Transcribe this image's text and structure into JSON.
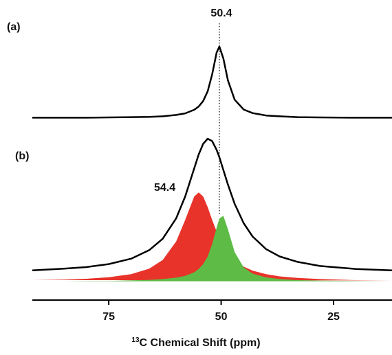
{
  "chart_data": {
    "type": "line",
    "x": [
      92,
      85,
      80,
      75,
      70,
      66,
      63,
      60,
      58,
      56,
      55,
      54,
      53,
      52,
      51,
      50.4,
      49.5,
      48.5,
      47,
      45,
      43,
      40,
      37,
      33,
      28,
      20,
      12
    ],
    "series": [
      {
        "color": "#e8332a",
        "fill": true,
        "values": [
          7.3,
          7.5,
          7.8,
          8.4,
          9.5,
          11.5,
          14.7,
          21.5,
          29.4,
          38.0,
          39.5,
          38.0,
          34.1,
          29.4,
          25.1,
          22.8,
          19.9,
          17.4,
          14.7,
          12.3,
          10.8,
          9.5,
          8.7,
          8.1,
          7.7,
          7.3,
          7.2
        ]
      },
      {
        "color": "#5dbb46",
        "fill": true,
        "values": [
          6.9,
          6.9,
          7.0,
          7.0,
          7.2,
          7.4,
          7.7,
          8.2,
          8.9,
          10.2,
          11.4,
          13.2,
          16.0,
          20.6,
          26.6,
          29.9,
          30.9,
          26.0,
          17.6,
          12.0,
          9.7,
          8.3,
          7.7,
          7.3,
          7.1,
          7.0,
          6.9
        ]
      },
      {
        "color": "#000000",
        "fill": false,
        "values": [
          10.9,
          11.5,
          12.1,
          13.2,
          15.2,
          18.3,
          22.5,
          30.0,
          38.0,
          48.3,
          53.4,
          57.3,
          59.2,
          58.3,
          55.1,
          52.4,
          47.7,
          42.4,
          35.3,
          28.2,
          23.3,
          18.7,
          16.0,
          14.0,
          12.5,
          11.4,
          10.9
        ]
      },
      {
        "color": "#000000",
        "fill": false,
        "values": [
          66.9,
          66.9,
          66.9,
          67.0,
          67.1,
          67.2,
          67.4,
          67.9,
          68.5,
          69.8,
          71.0,
          73.0,
          76.6,
          82.8,
          90.8,
          93.0,
          88.6,
          80.6,
          73.5,
          69.9,
          68.6,
          67.7,
          67.4,
          67.1,
          67.0,
          66.9,
          66.9
        ]
      }
    ],
    "xlim": [
      92,
      12
    ],
    "xticks": [
      75,
      50,
      25
    ],
    "ylim": [
      0,
      100
    ],
    "xlabel_sup": "13",
    "xlabel": "C Chemical Shift (ppm)",
    "panel_labels": [
      "(a)",
      "(b)"
    ],
    "peak_line": 50.4,
    "annotations": [
      "50.4",
      "54.4"
    ]
  }
}
